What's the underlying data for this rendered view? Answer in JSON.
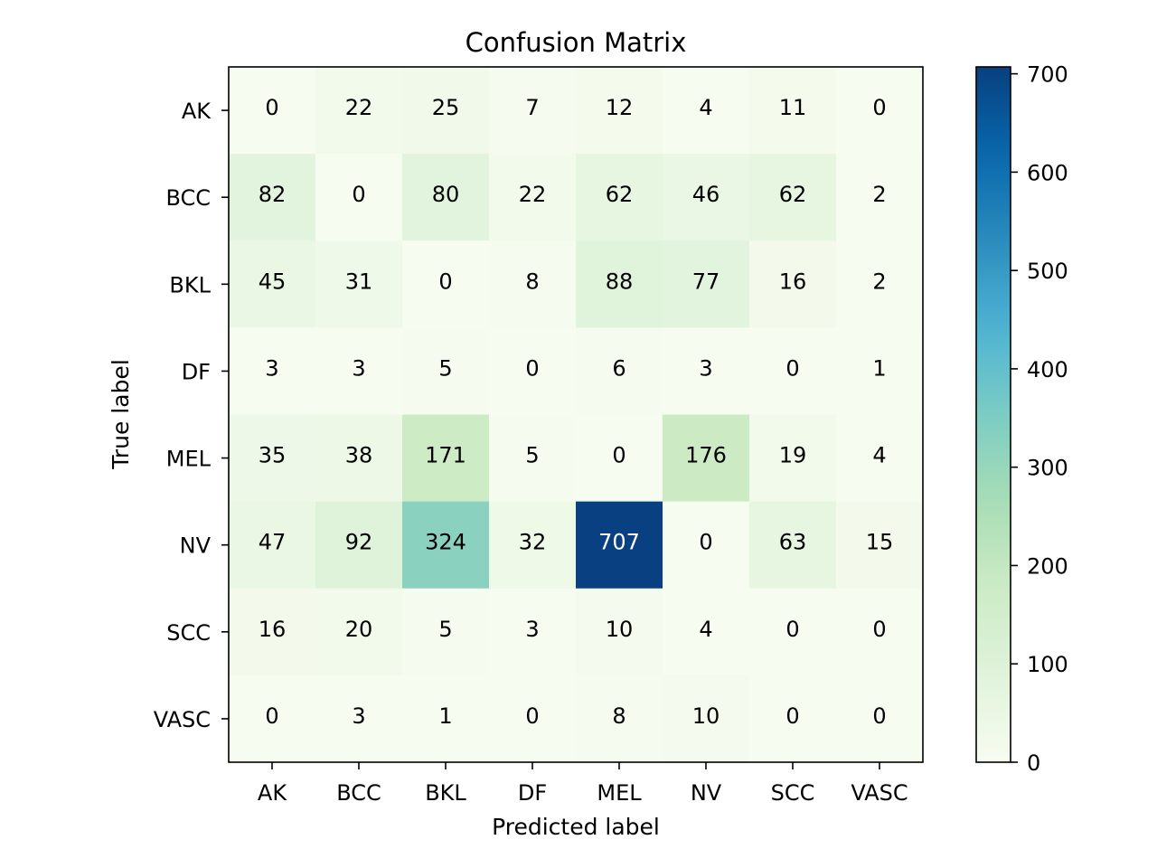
{
  "chart_data": {
    "type": "heatmap",
    "title": "Confusion Matrix",
    "xlabel": "Predicted label",
    "ylabel": "True label",
    "x_categories": [
      "AK",
      "BCC",
      "BKL",
      "DF",
      "MEL",
      "NV",
      "SCC",
      "VASC"
    ],
    "y_categories": [
      "AK",
      "BCC",
      "BKL",
      "DF",
      "MEL",
      "NV",
      "SCC",
      "VASC"
    ],
    "values": [
      [
        0,
        22,
        25,
        7,
        12,
        4,
        11,
        0
      ],
      [
        82,
        0,
        80,
        22,
        62,
        46,
        62,
        2
      ],
      [
        45,
        31,
        0,
        8,
        88,
        77,
        16,
        2
      ],
      [
        3,
        3,
        5,
        0,
        6,
        3,
        0,
        1
      ],
      [
        35,
        38,
        171,
        5,
        0,
        176,
        19,
        4
      ],
      [
        47,
        92,
        324,
        32,
        707,
        0,
        63,
        15
      ],
      [
        16,
        20,
        5,
        3,
        10,
        4,
        0,
        0
      ],
      [
        0,
        3,
        1,
        0,
        8,
        10,
        0,
        0
      ]
    ],
    "colormap": "GnBu",
    "colorbar": {
      "range": [
        0,
        707
      ],
      "ticks": [
        0,
        100,
        200,
        300,
        400,
        500,
        600,
        700
      ]
    },
    "grid": false,
    "legend": "colorbar-right"
  }
}
